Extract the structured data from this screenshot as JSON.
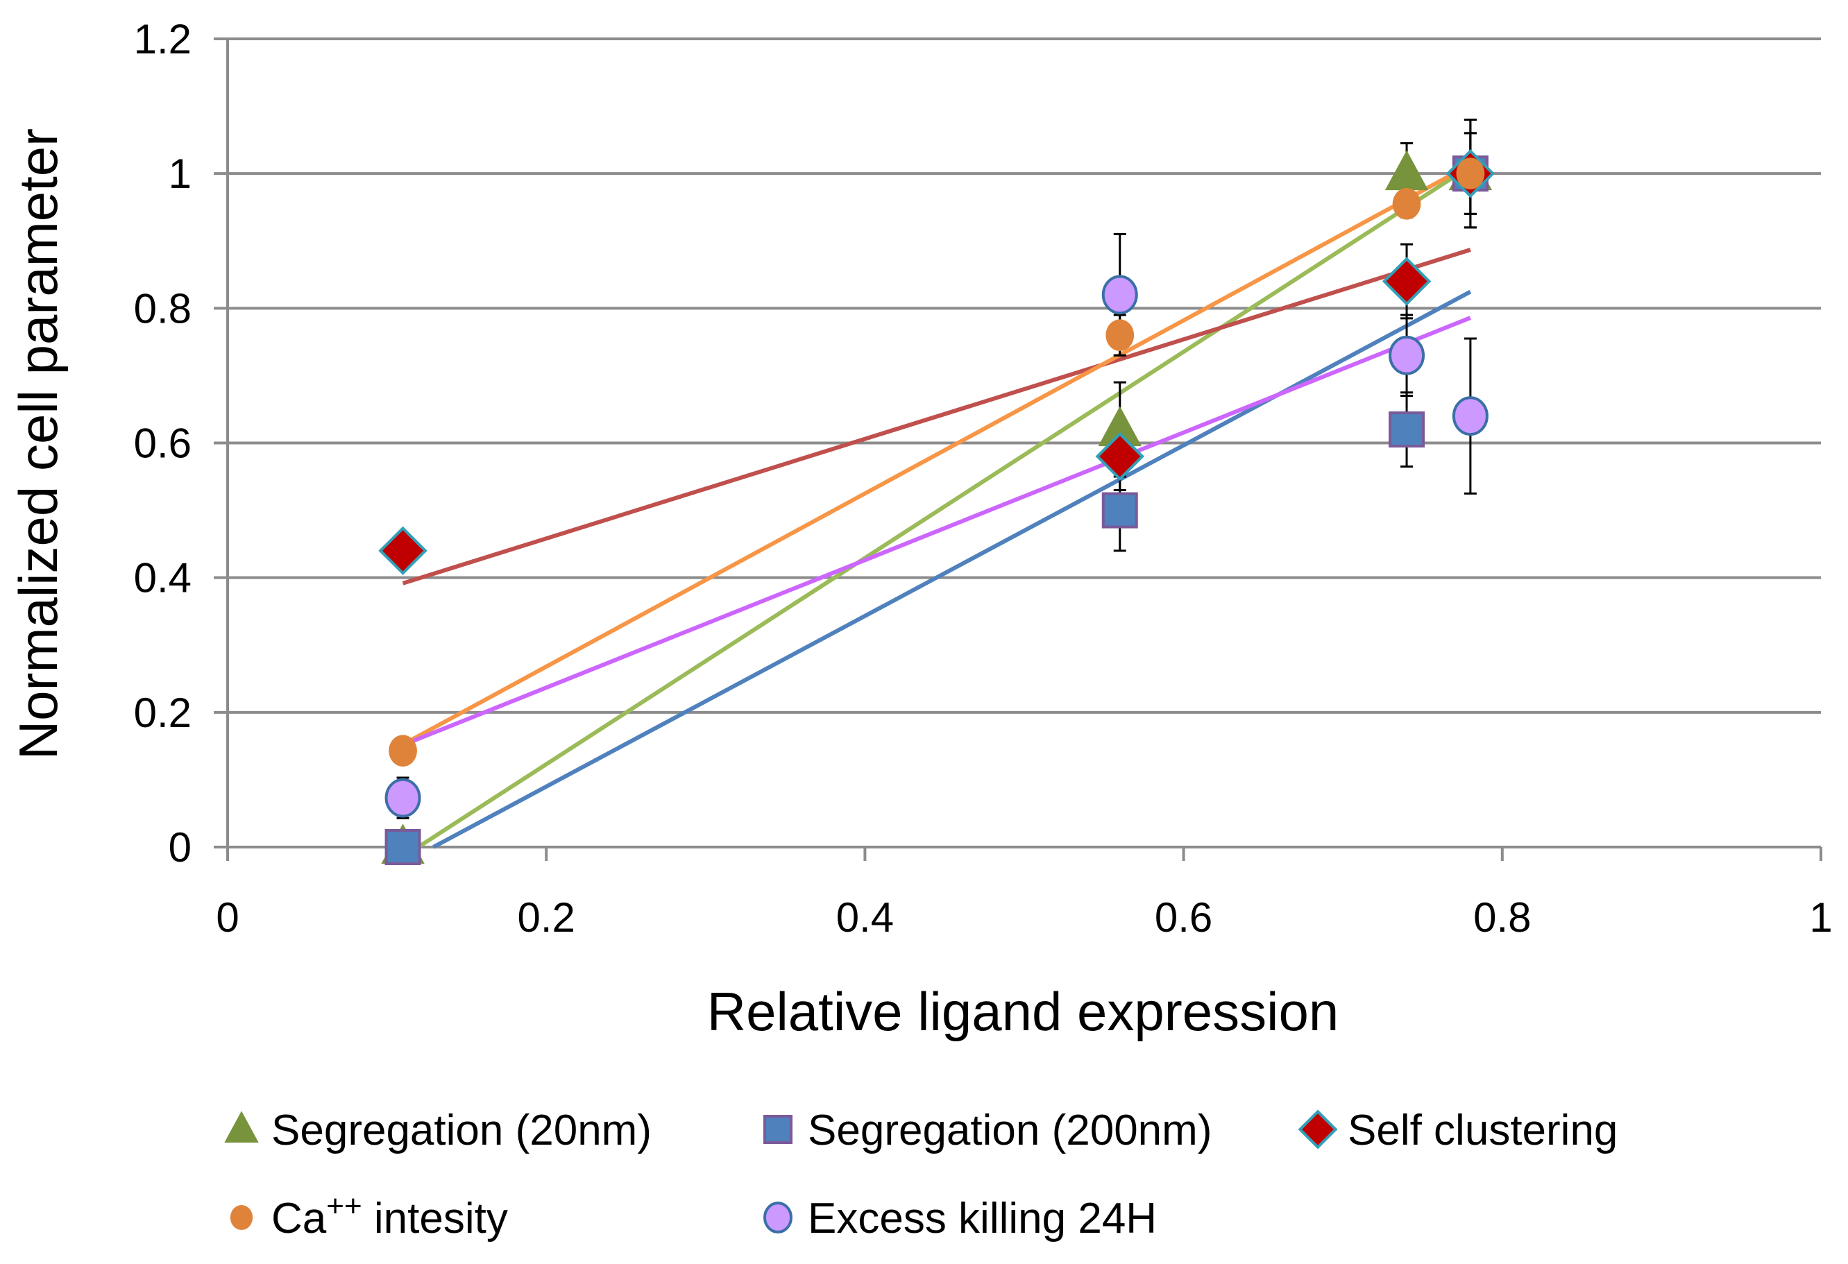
{
  "chart_data": {
    "type": "scatter",
    "title": "",
    "xlabel": "Relative ligand expression",
    "ylabel": "Normalized cell parameter",
    "xlim": [
      0,
      1
    ],
    "ylim": [
      0,
      1.2
    ],
    "xticks": [
      "0",
      "0.2",
      "0.4",
      "0.6",
      "0.8",
      "1"
    ],
    "yticks": [
      "0",
      "0.2",
      "0.4",
      "0.6",
      "0.8",
      "1",
      "1.2"
    ],
    "grid": "horizontal",
    "legend_position": "bottom",
    "trendlines": "linear",
    "series": [
      {
        "name": "Segregation (20nm)",
        "marker": "triangle",
        "color": "#77933C",
        "trend_color": "#9BBB59",
        "x": [
          0.11,
          0.56,
          0.74,
          0.78
        ],
        "y": [
          0.0,
          0.62,
          1.0,
          1.0
        ],
        "err": [
          0.02,
          0.07,
          0.045,
          0.06
        ]
      },
      {
        "name": "Segregation (200nm)",
        "marker": "square",
        "color": "#4F81BD",
        "trend_color": "#4F81BD",
        "x": [
          0.11,
          0.56,
          0.74,
          0.78
        ],
        "y": [
          0.0,
          0.5,
          0.62,
          1.0
        ],
        "err": [
          0.0,
          0.06,
          0.055,
          0.06
        ]
      },
      {
        "name": "Self clustering",
        "marker": "diamond",
        "color": "#C00000",
        "trend_color": "#C0504D",
        "x": [
          0.11,
          0.56,
          0.74,
          0.78
        ],
        "y": [
          0.44,
          0.58,
          0.84,
          1.0
        ],
        "err": [
          0.01,
          0.05,
          0.055,
          0.08
        ]
      },
      {
        "name": "Ca",
        "superscript": "++",
        "name_suffix": " intesity",
        "marker": "circle",
        "color": "#E0833A",
        "trend_color": "#F79646",
        "x": [
          0.11,
          0.56,
          0.74,
          0.78
        ],
        "y": [
          0.143,
          0.76,
          0.955,
          1.0
        ],
        "err": [
          0.0,
          0.03,
          0.02,
          0.08
        ]
      },
      {
        "name": "Excess killing 24H",
        "marker": "circle-outline",
        "color": "#CC99FF",
        "trend_color": "#CC66FF",
        "x": [
          0.11,
          0.56,
          0.74,
          0.78
        ],
        "y": [
          0.073,
          0.82,
          0.73,
          0.64
        ],
        "err": [
          0.03,
          0.09,
          0.06,
          0.115
        ]
      }
    ]
  }
}
